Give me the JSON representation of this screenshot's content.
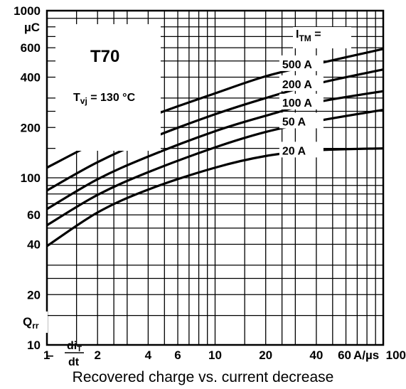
{
  "chart_data": {
    "type": "line",
    "title": "T70",
    "condition": "Tvj = 130 °C",
    "xlabel": "Recovered charge vs. current decrease",
    "x_axis_symbol": "diT/dt",
    "x_unit": "A/µs",
    "ylabel": "Qrr",
    "y_unit": "µC",
    "xscale": "log",
    "yscale": "log",
    "xlim": [
      1,
      100
    ],
    "ylim": [
      10,
      1000
    ],
    "x_ticks": [
      "1",
      "2",
      "4",
      "6",
      "10",
      "20",
      "40",
      "60",
      "100"
    ],
    "y_ticks": [
      "10",
      "20",
      "40",
      "60",
      "100",
      "200",
      "400",
      "600",
      "1000"
    ],
    "legend_title": "ITM =",
    "grid": true,
    "series": [
      {
        "name": "500 A",
        "x": [
          1,
          2,
          4,
          10,
          20,
          40,
          100
        ],
        "y": [
          115,
          165,
          230,
          320,
          405,
          480,
          590
        ]
      },
      {
        "name": "200 A",
        "x": [
          1,
          2,
          4,
          10,
          20,
          40,
          100
        ],
        "y": [
          84,
          124,
          170,
          240,
          300,
          365,
          445
        ]
      },
      {
        "name": "100 A",
        "x": [
          1,
          2,
          4,
          10,
          20,
          40,
          100
        ],
        "y": [
          65,
          98,
          134,
          190,
          235,
          283,
          330
        ]
      },
      {
        "name": "50 A",
        "x": [
          1,
          2,
          4,
          10,
          20,
          40,
          100
        ],
        "y": [
          52,
          79,
          108,
          152,
          188,
          218,
          255
        ]
      },
      {
        "name": "20 A",
        "x": [
          1,
          2,
          4,
          10,
          20,
          40,
          100
        ],
        "y": [
          39,
          62,
          85,
          115,
          135,
          146,
          150
        ]
      }
    ]
  }
}
